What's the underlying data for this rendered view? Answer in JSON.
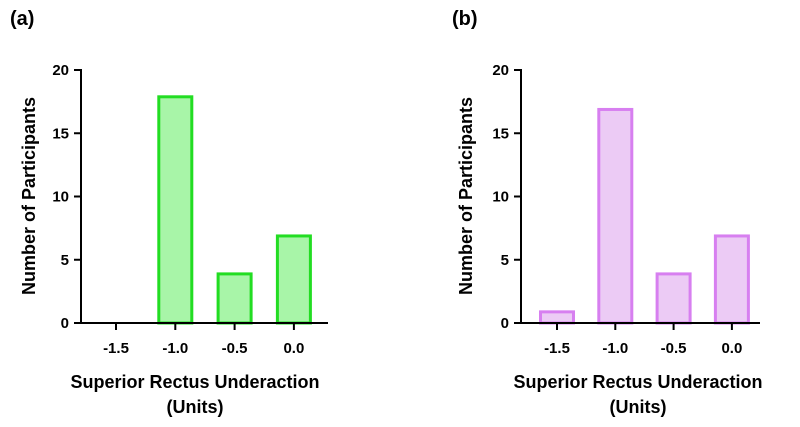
{
  "chart_data": [
    {
      "type": "bar",
      "panel_label": "(a)",
      "categories": [
        "-1.5",
        "-1.0",
        "-0.5",
        "0.0"
      ],
      "values": [
        0,
        18,
        4,
        7
      ],
      "xlabel_line1": "Superior Rectus Underaction",
      "xlabel_line2": "(Units)",
      "ylabel": "Number of Participants",
      "ylim": [
        0,
        20
      ],
      "yticks": [
        "0",
        "5",
        "10",
        "15",
        "20"
      ],
      "fill": "#a8f5a8",
      "stroke": "#22dd22"
    },
    {
      "type": "bar",
      "panel_label": "(b)",
      "categories": [
        "-1.5",
        "-1.0",
        "-0.5",
        "0.0"
      ],
      "values": [
        1,
        17,
        4,
        7
      ],
      "xlabel_line1": "Superior Rectus Underaction",
      "xlabel_line2": "(Units)",
      "ylabel": "Number of Participants",
      "ylim": [
        0,
        20
      ],
      "yticks": [
        "0",
        "5",
        "10",
        "15",
        "20"
      ],
      "fill": "#eccbf5",
      "stroke": "#d77ff0"
    }
  ]
}
